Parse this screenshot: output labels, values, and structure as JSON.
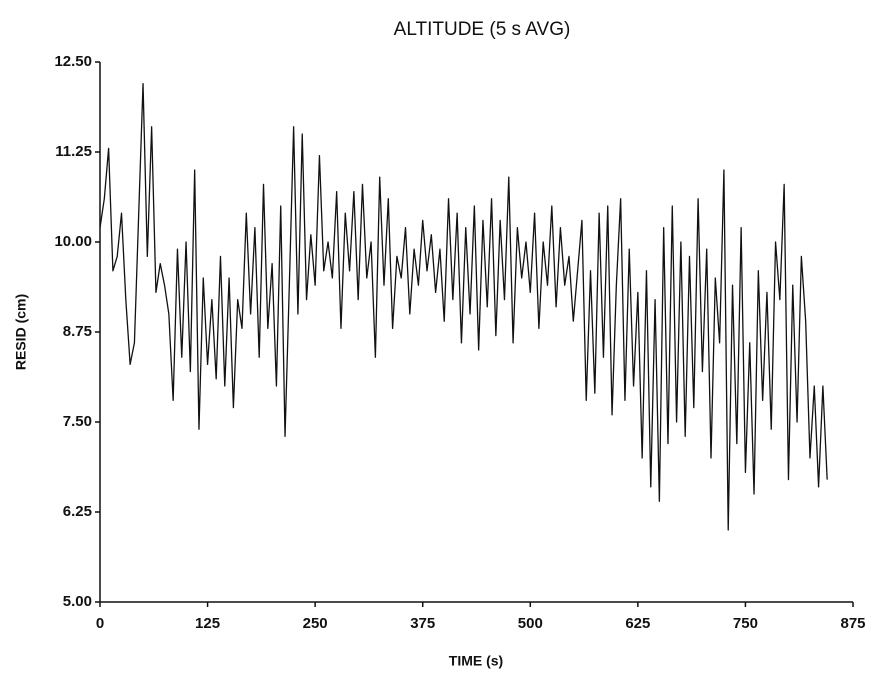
{
  "chart_data": {
    "type": "line",
    "title": "ALTITUDE (5 s AVG)",
    "x_label": "TIME (s)",
    "y_label": "RESID (cm)",
    "x": [
      0,
      5,
      10,
      15,
      20,
      25,
      30,
      35,
      40,
      45,
      50,
      55,
      60,
      65,
      70,
      75,
      80,
      85,
      90,
      95,
      100,
      105,
      110,
      115,
      120,
      125,
      130,
      135,
      140,
      145,
      150,
      155,
      160,
      165,
      170,
      175,
      180,
      185,
      190,
      195,
      200,
      205,
      210,
      215,
      220,
      225,
      230,
      235,
      240,
      245,
      250,
      255,
      260,
      265,
      270,
      275,
      280,
      285,
      290,
      295,
      300,
      305,
      310,
      315,
      320,
      325,
      330,
      335,
      340,
      345,
      350,
      355,
      360,
      365,
      370,
      375,
      380,
      385,
      390,
      395,
      400,
      405,
      410,
      415,
      420,
      425,
      430,
      435,
      440,
      445,
      450,
      455,
      460,
      465,
      470,
      475,
      480,
      485,
      490,
      495,
      500,
      505,
      510,
      515,
      520,
      525,
      530,
      535,
      540,
      545,
      550,
      555,
      560,
      565,
      570,
      575,
      580,
      585,
      590,
      595,
      600,
      605,
      610,
      615,
      620,
      625,
      630,
      635,
      640,
      645,
      650,
      655,
      660,
      665,
      670,
      675,
      680,
      685,
      690,
      695,
      700,
      705,
      710,
      715,
      720,
      725,
      730,
      735,
      740,
      745,
      750,
      755,
      760,
      765,
      770,
      775,
      780,
      785,
      790,
      795,
      800,
      805,
      810,
      815,
      820,
      825,
      830,
      835,
      840,
      845
    ],
    "series": [
      {
        "name": "RESID",
        "color": "#111111",
        "values": [
          10.2,
          10.6,
          11.3,
          9.6,
          9.8,
          10.4,
          9.2,
          8.3,
          8.6,
          10.4,
          12.2,
          9.8,
          11.6,
          9.3,
          9.7,
          9.4,
          9.0,
          7.8,
          9.9,
          8.4,
          10.0,
          8.2,
          11.0,
          7.4,
          9.5,
          8.3,
          9.2,
          8.1,
          9.8,
          8.0,
          9.5,
          7.7,
          9.2,
          8.8,
          10.4,
          9.0,
          10.2,
          8.4,
          10.8,
          8.8,
          9.7,
          8.0,
          10.5,
          7.3,
          9.4,
          11.6,
          9.0,
          11.5,
          9.2,
          10.1,
          9.4,
          11.2,
          9.6,
          10.0,
          9.5,
          10.7,
          8.8,
          10.4,
          9.6,
          10.7,
          9.2,
          10.8,
          9.5,
          10.0,
          8.4,
          10.9,
          9.4,
          10.6,
          8.8,
          9.8,
          9.5,
          10.2,
          9.0,
          9.9,
          9.4,
          10.3,
          9.6,
          10.1,
          9.3,
          9.9,
          8.9,
          10.6,
          9.2,
          10.4,
          8.6,
          10.2,
          9.0,
          10.5,
          8.5,
          10.3,
          9.1,
          10.6,
          8.7,
          10.3,
          9.2,
          10.9,
          8.6,
          10.2,
          9.5,
          10.0,
          9.3,
          10.4,
          8.8,
          10.0,
          9.4,
          10.5,
          9.1,
          10.2,
          9.4,
          9.8,
          8.9,
          9.6,
          10.3,
          7.8,
          9.6,
          7.9,
          10.4,
          8.4,
          10.5,
          7.6,
          9.4,
          10.6,
          7.8,
          9.9,
          8.0,
          9.3,
          7.0,
          9.6,
          6.6,
          9.2,
          6.4,
          10.2,
          7.2,
          10.5,
          7.5,
          10.0,
          7.3,
          9.8,
          7.7,
          10.6,
          8.2,
          9.9,
          7.0,
          9.5,
          8.6,
          11.0,
          6.0,
          9.4,
          7.2,
          10.2,
          6.8,
          8.6,
          6.5,
          9.6,
          7.8,
          9.3,
          7.4,
          10.0,
          9.2,
          10.8,
          6.7,
          9.4,
          7.5,
          9.8,
          8.9,
          7.0,
          8.0,
          6.6,
          8.0,
          6.7
        ]
      }
    ],
    "xlim": [
      0,
      875
    ],
    "xticks": [
      0,
      125,
      250,
      375,
      500,
      625,
      750,
      875
    ],
    "ylim": [
      5,
      12.5
    ],
    "yticks": [
      {
        "value": 5,
        "label": "5.00"
      },
      {
        "value": 6.25,
        "label": "6.25"
      },
      {
        "value": 7.5,
        "label": "7.50"
      },
      {
        "value": 8.75,
        "label": "8.75"
      },
      {
        "value": 10,
        "label": "10.00"
      },
      {
        "value": 11.25,
        "label": "11.25"
      },
      {
        "value": 12.5,
        "label": "12.50"
      }
    ],
    "grid": false
  }
}
